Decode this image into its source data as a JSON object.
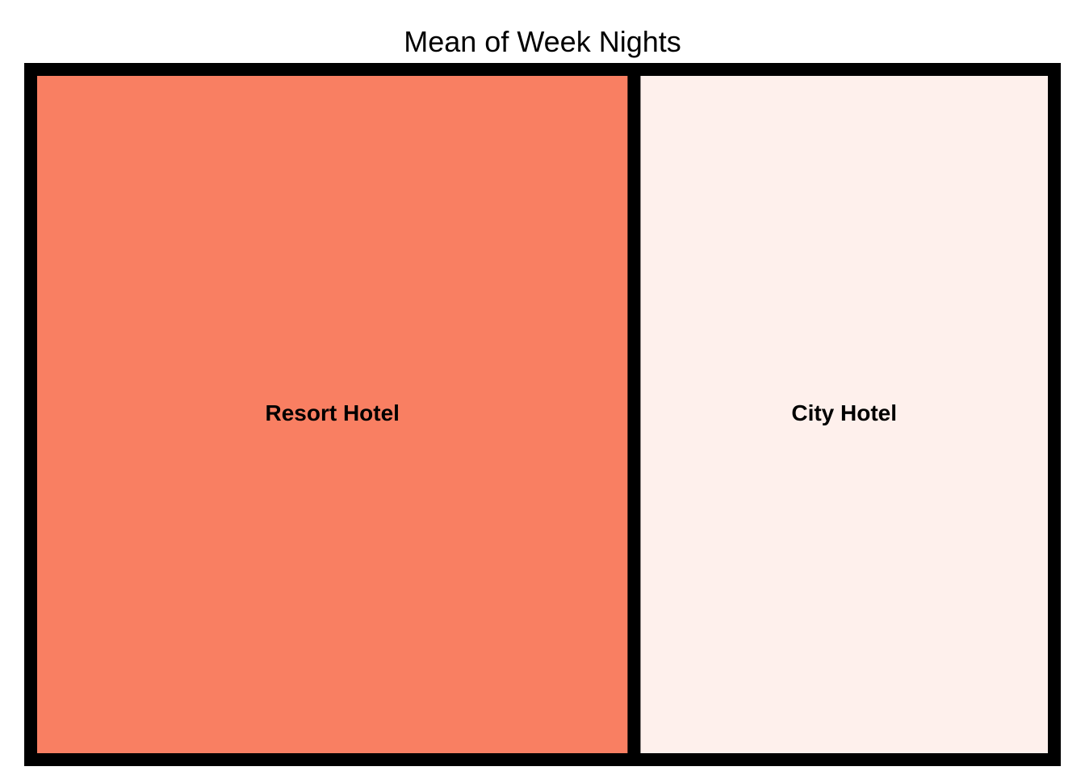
{
  "chart_data": {
    "type": "treemap",
    "title": "Mean of Week Nights",
    "metric": "Mean of Week Nights",
    "categories": [
      "Resort Hotel",
      "City Hotel"
    ],
    "values": [
      3.13,
      2.18
    ],
    "colors": [
      "#f97f62",
      "#fef0ec"
    ],
    "border_color": "#000000"
  }
}
